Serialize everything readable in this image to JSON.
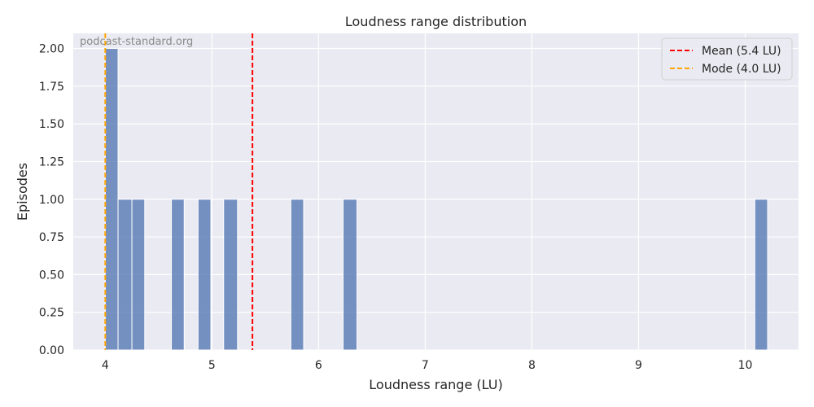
{
  "chart_data": {
    "type": "histogram",
    "title": "Loudness range distribution",
    "xlabel": "Loudness range (LU)",
    "ylabel": "Episodes",
    "xlim": [
      3.7,
      10.5
    ],
    "ylim": [
      0,
      2.1
    ],
    "xticks": [
      "4",
      "5",
      "6",
      "7",
      "8",
      "9",
      "10"
    ],
    "yticks": [
      "0.00",
      "0.25",
      "0.50",
      "0.75",
      "1.00",
      "1.25",
      "1.50",
      "1.75",
      "2.00"
    ],
    "grid": true,
    "background": "#eaeaf2",
    "bar_color": "#4c72b0",
    "bins": [
      {
        "x0": 4.0,
        "x1": 4.12,
        "count": 2
      },
      {
        "x0": 4.12,
        "x1": 4.25,
        "count": 1
      },
      {
        "x0": 4.25,
        "x1": 4.37,
        "count": 1
      },
      {
        "x0": 4.62,
        "x1": 4.74,
        "count": 1
      },
      {
        "x0": 4.87,
        "x1": 4.99,
        "count": 1
      },
      {
        "x0": 5.11,
        "x1": 5.24,
        "count": 1
      },
      {
        "x0": 5.74,
        "x1": 5.86,
        "count": 1
      },
      {
        "x0": 6.23,
        "x1": 6.36,
        "count": 1
      },
      {
        "x0": 10.09,
        "x1": 10.21,
        "count": 1
      }
    ],
    "reference_lines": [
      {
        "label": "Mean (5.4 LU)",
        "value": 5.38,
        "color": "#ff0000"
      },
      {
        "label": "Mode (4.0 LU)",
        "value": 4.0,
        "color": "#ffa500"
      }
    ],
    "legend_position": "top-right",
    "watermark": "podcast-standard.org"
  }
}
